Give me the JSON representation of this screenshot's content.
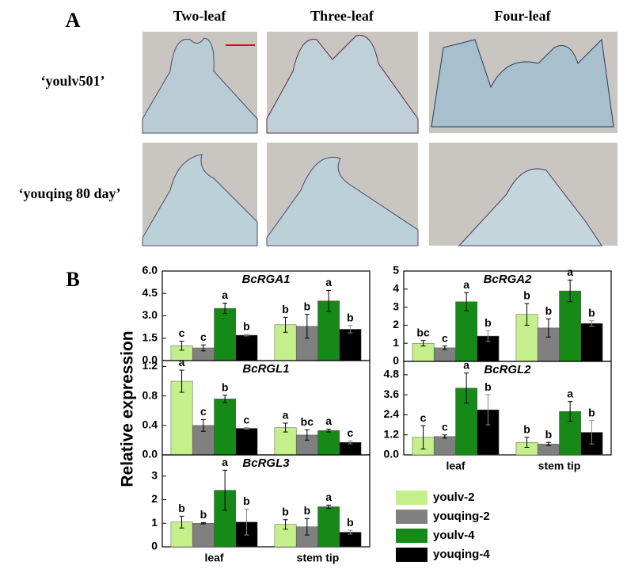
{
  "panel_a": {
    "label": "A",
    "columns": [
      "Two-leaf",
      "Three-leaf",
      "Four-leaf"
    ],
    "rows": [
      "‘youlv501’",
      "‘youqing 80 day’"
    ]
  },
  "panel_b": {
    "label": "B",
    "y_label": "Relative expression"
  },
  "chart_data": [
    {
      "type": "bar",
      "title": "BcRGA1",
      "ylim": [
        0,
        6
      ],
      "yticks": [
        {
          "value": 0,
          "label": "0.0"
        },
        1.5,
        {
          "value": 3,
          "label": "3.0"
        },
        4.5,
        {
          "value": 6,
          "label": "6.0"
        }
      ],
      "series": [
        {
          "color": "#c4ef8a",
          "values": [
            1.0,
            2.4
          ],
          "errors": [
            0.3,
            0.5
          ],
          "letters": [
            "c",
            "b"
          ]
        },
        {
          "color": "#808080",
          "values": [
            0.85,
            2.3
          ],
          "errors": [
            0.2,
            0.8
          ],
          "letters": [
            "c",
            "b"
          ]
        },
        {
          "color": "#168a16",
          "values": [
            3.5,
            4.0
          ],
          "errors": [
            0.35,
            0.7
          ],
          "letters": [
            "a",
            "a"
          ]
        },
        {
          "color": "#000000",
          "values": [
            1.7,
            2.1
          ],
          "errors": [
            0.05,
            0.25
          ],
          "letters": [
            "b",
            "b"
          ]
        }
      ]
    },
    {
      "type": "bar",
      "title": "BcRGA2",
      "ylim": [
        0,
        5
      ],
      "yticks": [
        0,
        1,
        2,
        3,
        4,
        5
      ],
      "series": [
        {
          "color": "#c4ef8a",
          "values": [
            1.0,
            2.6
          ],
          "errors": [
            0.15,
            0.6
          ],
          "letters": [
            "bc",
            "b"
          ]
        },
        {
          "color": "#808080",
          "values": [
            0.75,
            1.85
          ],
          "errors": [
            0.1,
            0.5
          ],
          "letters": [
            "c",
            "b"
          ]
        },
        {
          "color": "#168a16",
          "values": [
            3.3,
            3.9
          ],
          "errors": [
            0.5,
            0.6
          ],
          "letters": [
            "a",
            "a"
          ]
        },
        {
          "color": "#000000",
          "values": [
            1.4,
            2.1
          ],
          "errors": [
            0.3,
            0.15
          ],
          "letters": [
            "b",
            "b"
          ]
        }
      ]
    },
    {
      "type": "bar",
      "title": "BcRGL1",
      "ylim": [
        0,
        1.28
      ],
      "yticks": [
        {
          "value": 0,
          "label": "0.0"
        },
        0.4,
        0.8,
        1.2
      ],
      "series": [
        {
          "color": "#c4ef8a",
          "values": [
            1.0,
            0.37
          ],
          "errors": [
            0.15,
            0.06
          ],
          "letters": [
            "a",
            "a"
          ]
        },
        {
          "color": "#808080",
          "values": [
            0.4,
            0.27
          ],
          "errors": [
            0.08,
            0.07
          ],
          "letters": [
            "c",
            "bc"
          ]
        },
        {
          "color": "#168a16",
          "values": [
            0.76,
            0.33
          ],
          "errors": [
            0.05,
            0.02
          ],
          "letters": [
            "b",
            "a"
          ]
        },
        {
          "color": "#000000",
          "values": [
            0.36,
            0.17
          ],
          "errors": [
            0.01,
            0.02
          ],
          "letters": [
            "c",
            "c"
          ]
        }
      ]
    },
    {
      "type": "bar",
      "title": "BcRGL2",
      "ylim": [
        0,
        5.6
      ],
      "categories": [
        "leaf",
        "stem tip"
      ],
      "yticks": [
        {
          "value": 0,
          "label": "0.0"
        },
        1.2,
        2.4,
        3.6,
        4.8
      ],
      "series": [
        {
          "color": "#c4ef8a",
          "values": [
            1.05,
            0.75
          ],
          "errors": [
            0.7,
            0.3
          ],
          "letters": [
            "c",
            "b"
          ]
        },
        {
          "color": "#808080",
          "values": [
            1.1,
            0.65
          ],
          "errors": [
            0.1,
            0.1
          ],
          "letters": [
            "c",
            "b"
          ]
        },
        {
          "color": "#168a16",
          "values": [
            4.0,
            2.6
          ],
          "errors": [
            0.9,
            0.6
          ],
          "letters": [
            "a",
            "a"
          ]
        },
        {
          "color": "#000000",
          "values": [
            2.7,
            1.35
          ],
          "errors": [
            0.9,
            0.7
          ],
          "letters": [
            "b",
            "b"
          ]
        }
      ]
    },
    {
      "type": "bar",
      "title": "BcRGL3",
      "ylim": [
        0,
        3.9
      ],
      "categories": [
        "leaf",
        "stem tip"
      ],
      "yticks": [
        0,
        1,
        2,
        3
      ],
      "series": [
        {
          "name": "youlv-2",
          "color": "#c4ef8a",
          "values": [
            1.05,
            0.95
          ],
          "errors": [
            0.25,
            0.2
          ],
          "letters": [
            "b",
            "b"
          ]
        },
        {
          "name": "youqing-2",
          "color": "#808080",
          "values": [
            1.0,
            0.85
          ],
          "errors": [
            0.03,
            0.35
          ],
          "letters": [
            "b",
            "b"
          ]
        },
        {
          "name": "youlv-4",
          "color": "#168a16",
          "values": [
            2.4,
            1.7
          ],
          "errors": [
            0.85,
            0.07
          ],
          "letters": [
            "a",
            "a"
          ]
        },
        {
          "name": "youqing-4",
          "color": "#000000",
          "values": [
            1.05,
            0.62
          ],
          "errors": [
            0.55,
            0.08
          ],
          "letters": [
            "b",
            "b"
          ]
        }
      ]
    }
  ]
}
